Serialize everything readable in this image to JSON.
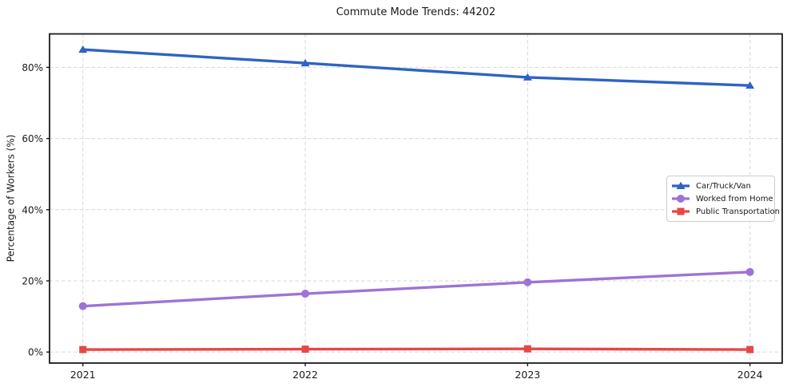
{
  "chart_data": {
    "type": "line",
    "title": "Commute Mode Trends: 44202",
    "xlabel": "",
    "ylabel": "Percentage of Workers (%)",
    "x": [
      2021,
      2022,
      2023,
      2024
    ],
    "xtick_labels": [
      "2021",
      "2022",
      "2023",
      "2024"
    ],
    "yticks": [
      0,
      20,
      40,
      60,
      80
    ],
    "ytick_labels": [
      "0%",
      "20%",
      "40%",
      "60%",
      "80%"
    ],
    "xlim": [
      2020.85,
      2024.145
    ],
    "ylim": [
      -3.1,
      89.4
    ],
    "grid": "dashed gridlines on both axes",
    "grid_color": "#d7d7d7",
    "spine_color": "#1a1a1a",
    "background_color": "#ffffff",
    "legend_position": "center right",
    "series": [
      {
        "name": "Car/Truck/Van",
        "color": "#2e63c3",
        "marker": "triangle-up",
        "values": [
          85.0,
          81.2,
          77.2,
          74.9
        ]
      },
      {
        "name": "Worked from Home",
        "color": "#9d74d6",
        "marker": "circle",
        "values": [
          12.9,
          16.4,
          19.6,
          22.5
        ]
      },
      {
        "name": "Public Transportation",
        "color": "#e64747",
        "marker": "square",
        "values": [
          0.7,
          0.8,
          0.9,
          0.7
        ]
      }
    ]
  }
}
